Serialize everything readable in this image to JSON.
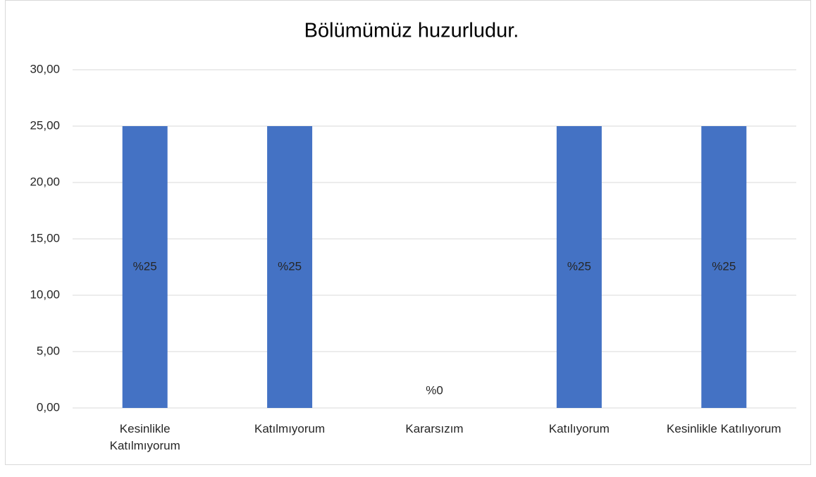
{
  "chart_data": {
    "type": "bar",
    "title": "Bölümümüz huzurludur.",
    "categories": [
      "Kesinlikle Katılmıyorum",
      "Katılmıyorum",
      "Kararsızım",
      "Katılıyorum",
      "Kesinlikle Katılıyorum"
    ],
    "values": [
      25,
      25,
      0,
      25,
      25
    ],
    "value_labels": [
      "%25",
      "%25",
      "%0",
      "%25",
      "%25"
    ],
    "color": "#4472c4",
    "ylim": [
      0,
      30
    ],
    "yticks": [
      {
        "value": 0,
        "label": "0,00"
      },
      {
        "value": 5,
        "label": "5,00"
      },
      {
        "value": 10,
        "label": "10,00"
      },
      {
        "value": 15,
        "label": "15,00"
      },
      {
        "value": 20,
        "label": "20,00"
      },
      {
        "value": 25,
        "label": "25,00"
      },
      {
        "value": 30,
        "label": "30,00"
      }
    ],
    "grid": true
  }
}
